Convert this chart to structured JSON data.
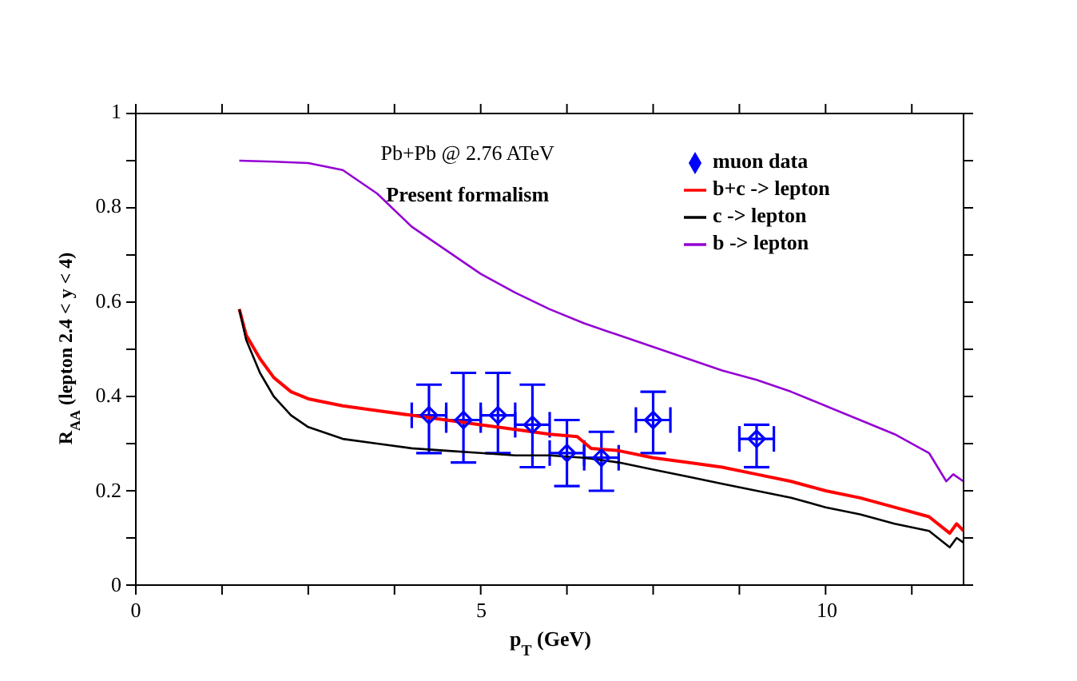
{
  "chart_data": {
    "type": "line",
    "xlabel": "p$_{T}$ (GeV)",
    "ylabel": "R$_{AA}$ (lepton 2.4 < y < 4)",
    "annotations": [
      "Pb+Pb @ 2.76 ATeV",
      "Present formalism"
    ],
    "xlim": [
      0,
      12
    ],
    "xticks": [
      0,
      {
        "value": 1.25,
        "label": null
      },
      {
        "value": 2.5,
        "label": null
      },
      {
        "value": 3.75,
        "label": null
      },
      5,
      {
        "value": 6.25,
        "label": null
      },
      {
        "value": 7.5,
        "label": null
      },
      {
        "value": 8.75,
        "label": null
      },
      10,
      {
        "value": 11.25,
        "label": null
      }
    ],
    "ylim": [
      0,
      1
    ],
    "yticks": [
      0,
      {
        "value": 0.1,
        "label": null
      },
      0.2,
      {
        "value": 0.3,
        "label": null
      },
      0.4,
      {
        "value": 0.5,
        "label": null
      },
      0.6,
      {
        "value": 0.7,
        "label": null
      },
      0.8,
      {
        "value": 0.9,
        "label": null
      },
      1
    ],
    "grid": false,
    "legend": "top right",
    "series": [
      {
        "name": "muon data",
        "type": "scatter",
        "color": "#0000ff",
        "marker": "diamond",
        "x": [
          4.25,
          4.75,
          5.25,
          5.75,
          6.25,
          6.75,
          7.5,
          9.0
        ],
        "values": [
          0.36,
          0.35,
          0.36,
          0.34,
          0.28,
          0.27,
          0.35,
          0.31
        ],
        "errors": [
          [
            0.28,
            0.425
          ],
          [
            0.26,
            0.45
          ],
          [
            0.28,
            0.45
          ],
          [
            0.25,
            0.425
          ],
          [
            0.21,
            0.35
          ],
          [
            0.2,
            0.325
          ],
          [
            0.28,
            0.41
          ],
          [
            0.25,
            0.34
          ]
        ],
        "xerrors": [
          0.25,
          0.25,
          0.25,
          0.25,
          0.25,
          0.25,
          0.25,
          0.25
        ]
      },
      {
        "name": "b+c -> lepton",
        "color": "#ff0000",
        "marker": "none",
        "line_style": "solid",
        "x": [
          1.5,
          1.6,
          1.8,
          2,
          2.25,
          2.5,
          3,
          3.5,
          4,
          4.5,
          5,
          5.5,
          6,
          6.4,
          6.6,
          7,
          7.5,
          8,
          8.5,
          9,
          9.5,
          10,
          10.5,
          11,
          11.5,
          11.8,
          11.9,
          12
        ],
        "values": [
          0.585,
          0.53,
          0.48,
          0.44,
          0.41,
          0.395,
          0.38,
          0.37,
          0.36,
          0.35,
          0.34,
          0.33,
          0.32,
          0.315,
          0.29,
          0.285,
          0.27,
          0.26,
          0.25,
          0.235,
          0.22,
          0.2,
          0.185,
          0.165,
          0.145,
          0.11,
          0.13,
          0.115
        ]
      },
      {
        "name": "c -> lepton",
        "color": "#000000",
        "marker": "none",
        "line_style": "solid",
        "x": [
          1.5,
          1.6,
          1.8,
          2,
          2.25,
          2.5,
          3,
          3.5,
          4,
          4.5,
          5,
          5.5,
          6,
          6.5,
          7,
          7.5,
          8,
          8.5,
          9,
          9.5,
          10,
          10.5,
          11,
          11.5,
          11.8,
          11.9,
          12
        ],
        "values": [
          0.585,
          0.52,
          0.45,
          0.4,
          0.36,
          0.335,
          0.31,
          0.3,
          0.29,
          0.285,
          0.28,
          0.275,
          0.275,
          0.27,
          0.26,
          0.245,
          0.23,
          0.215,
          0.2,
          0.185,
          0.165,
          0.15,
          0.13,
          0.115,
          0.08,
          0.1,
          0.09
        ]
      },
      {
        "name": "b -> lepton",
        "color": "#9400d3",
        "marker": "none",
        "line_style": "solid",
        "x": [
          1.5,
          2,
          2.5,
          3,
          3.5,
          4,
          4.5,
          5,
          5.5,
          6,
          6.5,
          7,
          7.5,
          8,
          8.5,
          9,
          9.5,
          10,
          10.5,
          11,
          11.5,
          11.75,
          11.85,
          12
        ],
        "values": [
          0.9,
          0.898,
          0.895,
          0.88,
          0.83,
          0.76,
          0.71,
          0.66,
          0.62,
          0.585,
          0.555,
          0.53,
          0.505,
          0.48,
          0.455,
          0.435,
          0.41,
          0.38,
          0.35,
          0.32,
          0.28,
          0.22,
          0.235,
          0.22
        ]
      }
    ]
  }
}
